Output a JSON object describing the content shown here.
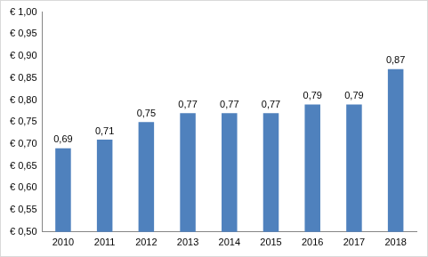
{
  "chart_data": {
    "type": "bar",
    "categories": [
      "2010",
      "2011",
      "2012",
      "2013",
      "2014",
      "2015",
      "2016",
      "2017",
      "2018"
    ],
    "values": [
      0.69,
      0.71,
      0.75,
      0.77,
      0.77,
      0.77,
      0.79,
      0.79,
      0.87
    ],
    "value_labels": [
      "0,69",
      "0,71",
      "0,75",
      "0,77",
      "0,77",
      "0,77",
      "0,79",
      "0,79",
      "0,87"
    ],
    "color": "#4f81bd",
    "ylim": [
      0.5,
      1.0
    ],
    "yticks": [
      {
        "value": 0.5,
        "label": "€ 0,50"
      },
      {
        "value": 0.55,
        "label": "€ 0,55"
      },
      {
        "value": 0.6,
        "label": "€ 0,60"
      },
      {
        "value": 0.65,
        "label": "€ 0,65"
      },
      {
        "value": 0.7,
        "label": "€ 0,70"
      },
      {
        "value": 0.75,
        "label": "€ 0,75"
      },
      {
        "value": 0.8,
        "label": "€ 0,80"
      },
      {
        "value": 0.85,
        "label": "€ 0,85"
      },
      {
        "value": 0.9,
        "label": "€ 0,90"
      },
      {
        "value": 0.95,
        "label": "€ 0,95"
      },
      {
        "value": 1.0,
        "label": "€ 1,00"
      }
    ],
    "grid": false,
    "data_labels": true
  }
}
